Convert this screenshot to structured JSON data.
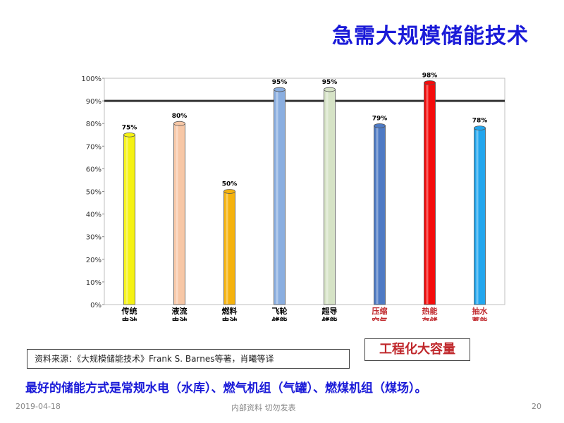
{
  "slide": {
    "title": "急需大规模储能技术",
    "source_text": "资料来源：《大规模储能技术》Frank S. Barnes等著，肖曦等译",
    "highlight_text": "工程化大容量",
    "summary_text": "最好的储能方式是常规水电（水库）、燃气机组（气罐）、燃煤机组（煤场）。",
    "footer_date": "2019-04-18",
    "footer_center": "内部资料 切勿发表",
    "footer_page": "20"
  },
  "chart_data": {
    "type": "bar",
    "title": "",
    "xlabel": "",
    "ylabel": "",
    "ylim": [
      0,
      100
    ],
    "y_ticks": [
      "0%",
      "10%",
      "20%",
      "30%",
      "40%",
      "50%",
      "60%",
      "70%",
      "80%",
      "90%",
      "100%"
    ],
    "reference_line": 90,
    "grid": false,
    "categories": [
      {
        "line1": "传统",
        "line2": "电池",
        "value": 75,
        "label": "75%",
        "color": "#f5f213",
        "label_color": "#000000"
      },
      {
        "line1": "液流",
        "line2": "电池",
        "value": 80,
        "label": "80%",
        "color": "#f7c7a6",
        "label_color": "#000000"
      },
      {
        "line1": "燃料",
        "line2": "电池",
        "value": 50,
        "label": "50%",
        "color": "#f5b20d",
        "label_color": "#000000"
      },
      {
        "line1": "飞轮",
        "line2": "储能",
        "value": 95,
        "label": "95%",
        "color": "#8aaee0",
        "label_color": "#000000"
      },
      {
        "line1": "超导",
        "line2": "储能",
        "value": 95,
        "label": "95%",
        "color": "#d6e3c6",
        "label_color": "#000000"
      },
      {
        "line1": "压缩",
        "line2": "空气",
        "value": 79,
        "label": "79%",
        "color": "#4e7ac4",
        "label_color": "#c0282c"
      },
      {
        "line1": "热能",
        "line2": "存储",
        "value": 98,
        "label": "98%",
        "color": "#f40c0c",
        "label_color": "#c0282c"
      },
      {
        "line1": "抽水",
        "line2": "蓄能",
        "value": 78,
        "label": "78%",
        "color": "#22a6ee",
        "label_color": "#c0282c"
      }
    ]
  }
}
